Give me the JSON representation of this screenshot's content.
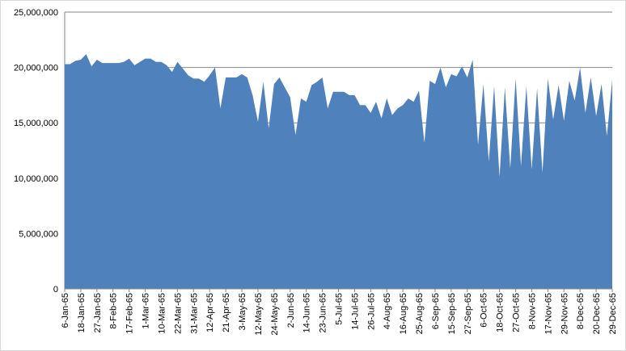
{
  "chart_data": {
    "type": "area",
    "categories": [
      "6-Jan-65",
      null,
      null,
      "18-Jan-65",
      null,
      null,
      "27-Jan-65",
      null,
      null,
      "8-Feb-65",
      null,
      null,
      "17-Feb-65",
      null,
      null,
      "1-Mar-65",
      null,
      null,
      "10-Mar-65",
      null,
      null,
      "22-Mar-65",
      null,
      null,
      "31-Mar-65",
      null,
      null,
      "12-Apr-65",
      null,
      null,
      "21-Apr-65",
      null,
      null,
      "3-May-65",
      null,
      null,
      "12-May-65",
      null,
      null,
      "24-May-65",
      null,
      null,
      "2-Jun-65",
      null,
      null,
      "14-Jun-65",
      null,
      null,
      "23-Jun-65",
      null,
      null,
      "5-Jul-65",
      null,
      null,
      "14-Jul-65",
      null,
      null,
      "26-Jul-65",
      null,
      null,
      "4-Aug-65",
      null,
      null,
      "16-Aug-65",
      null,
      null,
      "25-Aug-65",
      null,
      null,
      "6-Sep-65",
      null,
      null,
      "15-Sep-65",
      null,
      null,
      "27-Sep-65",
      null,
      null,
      "6-Oct-65",
      null,
      null,
      "18-Oct-65",
      null,
      null,
      "27-Oct-65",
      null,
      null,
      "8-Nov-65",
      null,
      null,
      "17-Nov-65",
      null,
      null,
      "29-Nov-65",
      null,
      null,
      "8-Dec-65",
      null,
      null,
      "20-Dec-65",
      null,
      null,
      "29-Dec-65"
    ],
    "values": [
      20300000,
      20300000,
      20600000,
      20700000,
      21200000,
      20100000,
      20700000,
      20400000,
      20400000,
      20400000,
      20400000,
      20500000,
      20800000,
      20200000,
      20500000,
      20800000,
      20800000,
      20500000,
      20500000,
      20200000,
      19600000,
      20500000,
      19900000,
      19300000,
      19000000,
      19000000,
      18700000,
      19300000,
      20000000,
      16300000,
      19100000,
      19100000,
      19100000,
      19400000,
      19100000,
      17500000,
      15100000,
      18700000,
      14500000,
      18500000,
      19100000,
      18200000,
      17300000,
      13900000,
      17200000,
      16900000,
      18400000,
      18700000,
      19100000,
      16300000,
      17800000,
      17800000,
      17800000,
      17500000,
      17500000,
      16600000,
      16600000,
      15900000,
      16900000,
      15400000,
      17200000,
      15700000,
      16300000,
      16600000,
      17200000,
      16900000,
      17900000,
      13200000,
      18800000,
      18500000,
      20000000,
      18200000,
      19400000,
      19200000,
      20100000,
      19100000,
      20700000,
      13000000,
      18500000,
      11500000,
      18300000,
      10100000,
      18200000,
      10900000,
      19000000,
      11100000,
      18300000,
      10800000,
      18100000,
      10500000,
      19000000,
      15300000,
      18400000,
      15200000,
      18800000,
      17000000,
      20000000,
      15900000,
      19100000,
      15600000,
      18500000,
      13800000,
      18900000
    ],
    "color": "#4f81bd",
    "ylim": [
      0,
      25000000
    ],
    "yticks": [
      0,
      {
        "value": 5000000,
        "label": "5,000,000"
      },
      {
        "value": 10000000,
        "label": "10,000,000"
      },
      {
        "value": 15000000,
        "label": "15,000,000"
      },
      {
        "value": 20000000,
        "label": "20,000,000"
      },
      {
        "value": 25000000,
        "label": "25,000,000"
      }
    ],
    "grid": true
  }
}
